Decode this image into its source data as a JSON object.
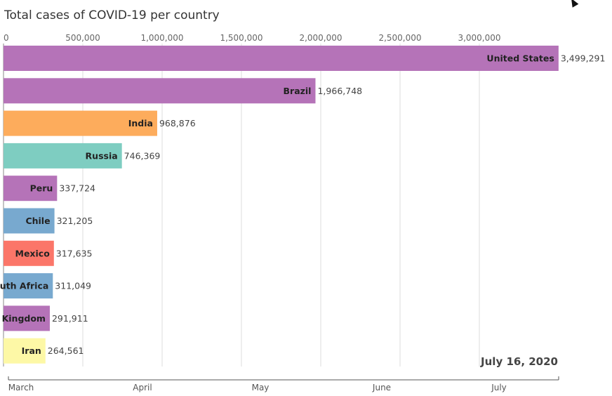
{
  "chart_data": {
    "type": "bar",
    "title": "Total cases of COVID-19 per country",
    "orientation": "horizontal",
    "date": "July 16, 2020",
    "xlim": [
      0,
      3500000
    ],
    "x_ticks": [
      0,
      500000,
      1000000,
      1500000,
      2000000,
      2500000,
      3000000
    ],
    "x_tick_labels": [
      "0",
      "500,000",
      "1,000,000",
      "1,500,000",
      "2,000,000",
      "2,500,000",
      "3,000,000"
    ],
    "grid": true,
    "categories": [
      "United States",
      "Brazil",
      "India",
      "Russia",
      "Peru",
      "Chile",
      "Mexico",
      "South Africa",
      "United Kingdom",
      "Iran"
    ],
    "values": [
      3499291,
      1966748,
      968876,
      746369,
      337724,
      321205,
      317635,
      311049,
      291911,
      264561
    ],
    "value_labels": [
      "3,499,291",
      "1,966,748",
      "968,876",
      "746,369",
      "337,724",
      "321,205",
      "317,635",
      "311,049",
      "291,911",
      "264,561"
    ],
    "bar_label_text": [
      "United States",
      "Brazil",
      "India",
      "Russia",
      "Peru",
      "Chile",
      "Mexico",
      "outh Africa",
      "Kingdom",
      "Iran"
    ],
    "colors": [
      "#b573b8",
      "#b573b8",
      "#fdac5c",
      "#7ecdc1",
      "#b573b8",
      "#78a9cf",
      "#fb7669",
      "#78a9cf",
      "#b573b8",
      "#fdf8a6"
    ],
    "timeline_labels": [
      "March",
      "April",
      "May",
      "June",
      "July"
    ]
  }
}
